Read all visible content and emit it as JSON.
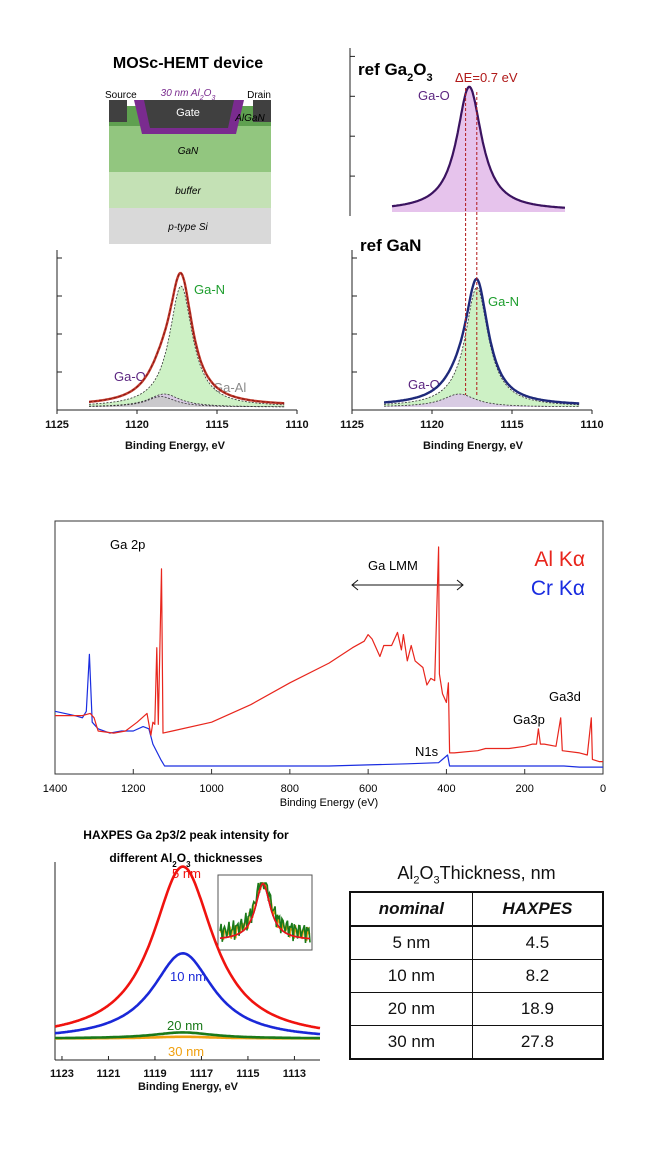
{
  "device": {
    "title": "MOSc-HEMT device",
    "source": "Source",
    "drain": "Drain",
    "oxide": "30 nm Al2O3",
    "gate": "Gate",
    "layers": [
      "AlGaN",
      "GaN",
      "buffer",
      "p-type Si"
    ],
    "colors": {
      "algan": "#5fa050",
      "gan": "#92c67f",
      "buffer": "#c4e1b5",
      "si": "#d9d9d9",
      "oxide": "#7a2b8f",
      "contact": "#404040"
    }
  },
  "chart_data": [
    {
      "id": "ref-ga2o3",
      "type": "line",
      "title": "ref Ga2O3",
      "fill_color": "#e6c3ec",
      "line_color": "#3b1360",
      "annotation": "ΔE=0.7 eV",
      "peak_labels": [
        "Ga-O"
      ],
      "series": [
        {
          "name": "Ga-O",
          "center": 1117.9,
          "fwhm": 1.8,
          "amplitude": 1.0
        }
      ],
      "xlim": [
        1125,
        1110
      ],
      "x_range": [
        1122.5,
        1112.2
      ]
    },
    {
      "id": "sample-fit",
      "type": "line",
      "title": "",
      "xlabel": "Binding Energy, eV",
      "xticks": [
        1125,
        1120,
        1115,
        1110
      ],
      "xlim": [
        1125,
        1110
      ],
      "x_range": [
        1123,
        1110.8
      ],
      "envelope_color": "#c0392b",
      "peak_labels": [
        "Ga-N",
        "Ga-O",
        "Ga-Al"
      ],
      "series": [
        {
          "name": "Ga-N",
          "center": 1117.25,
          "fwhm": 1.75,
          "amplitude": 0.93,
          "color": "#c8efbf"
        },
        {
          "name": "Ga-O",
          "center": 1118.3,
          "fwhm": 2.4,
          "amplitude": 0.1,
          "color": "#6d3d8f"
        },
        {
          "name": "Ga-Al",
          "center": 1118.5,
          "fwhm": 2.2,
          "amplitude": 0.08,
          "color": "#b8b8b8"
        }
      ]
    },
    {
      "id": "ref-gan",
      "type": "line",
      "title": "ref GaN",
      "xlabel": "Binding Energy, eV",
      "xticks": [
        1125,
        1120,
        1115,
        1110
      ],
      "xlim": [
        1125,
        1110
      ],
      "x_range": [
        1123,
        1110.8
      ],
      "envelope_color": "#1f2a7a",
      "peak_labels": [
        "Ga-N",
        "Ga-O"
      ],
      "series": [
        {
          "name": "Ga-N",
          "center": 1117.2,
          "fwhm": 1.75,
          "amplitude": 0.92,
          "color": "#c8efbf"
        },
        {
          "name": "Ga-O",
          "center": 1118.3,
          "fwhm": 2.5,
          "amplitude": 0.1,
          "color": "#6d3d8f"
        }
      ],
      "markers": [
        1117.9,
        1117.2
      ]
    },
    {
      "id": "survey",
      "type": "line",
      "xlabel": "Binding Energy (eV)",
      "xticks": [
        1400,
        1200,
        1000,
        800,
        600,
        400,
        200,
        0
      ],
      "xlim": [
        1400,
        0
      ],
      "legend": [
        {
          "name": "Al Kα",
          "color": "#e8261d"
        },
        {
          "name": "Cr Kα",
          "color": "#1a2de0"
        }
      ],
      "legend_position": "top-right",
      "annotations": [
        "Ga 2p",
        "Ga LMM",
        "N1s",
        "Ga3p",
        "Ga3d"
      ],
      "series": [
        {
          "name": "Al Kα",
          "color": "#e8261d",
          "points": [
            [
              1400,
              0.23
            ],
            [
              1330,
              0.23
            ],
            [
              1310,
              0.24
            ],
            [
              1300,
              0.22
            ],
            [
              1290,
              0.16
            ],
            [
              1250,
              0.15
            ],
            [
              1220,
              0.16
            ],
            [
              1190,
              0.2
            ],
            [
              1165,
              0.24
            ],
            [
              1155,
              0.14
            ],
            [
              1150,
              0.2
            ],
            [
              1145,
              0.19
            ],
            [
              1140,
              0.54
            ],
            [
              1136,
              0.19
            ],
            [
              1128,
              0.9
            ],
            [
              1124,
              0.15
            ],
            [
              1100,
              0.16
            ],
            [
              1000,
              0.2
            ],
            [
              900,
              0.28
            ],
            [
              800,
              0.38
            ],
            [
              700,
              0.47
            ],
            [
              640,
              0.54
            ],
            [
              610,
              0.57
            ],
            [
              600,
              0.6
            ],
            [
              590,
              0.58
            ],
            [
              570,
              0.5
            ],
            [
              560,
              0.55
            ],
            [
              540,
              0.55
            ],
            [
              525,
              0.61
            ],
            [
              515,
              0.53
            ],
            [
              510,
              0.6
            ],
            [
              500,
              0.48
            ],
            [
              490,
              0.55
            ],
            [
              480,
              0.48
            ],
            [
              460,
              0.45
            ],
            [
              450,
              0.37
            ],
            [
              440,
              0.4
            ],
            [
              430,
              0.39
            ],
            [
              420,
              1.0
            ],
            [
              418,
              0.42
            ],
            [
              410,
              0.33
            ],
            [
              400,
              0.29
            ],
            [
              395,
              0.38
            ],
            [
              392,
              0.06
            ],
            [
              380,
              0.06
            ],
            [
              320,
              0.07
            ],
            [
              300,
              0.08
            ],
            [
              260,
              0.08
            ],
            [
              240,
              0.08
            ],
            [
              200,
              0.09
            ],
            [
              180,
              0.1
            ],
            [
              170,
              0.1
            ],
            [
              165,
              0.17
            ],
            [
              160,
              0.1
            ],
            [
              150,
              0.1
            ],
            [
              120,
              0.09
            ],
            [
              108,
              0.22
            ],
            [
              104,
              0.07
            ],
            [
              60,
              0.06
            ],
            [
              40,
              0.05
            ],
            [
              30,
              0.22
            ],
            [
              27,
              0.03
            ],
            [
              10,
              0.02
            ],
            [
              0,
              0.02
            ]
          ]
        },
        {
          "name": "Cr Kα",
          "color": "#1a2de0",
          "points": [
            [
              1400,
              0.25
            ],
            [
              1350,
              0.23
            ],
            [
              1330,
              0.22
            ],
            [
              1320,
              0.25
            ],
            [
              1312,
              0.51
            ],
            [
              1305,
              0.2
            ],
            [
              1290,
              0.17
            ],
            [
              1260,
              0.15
            ],
            [
              1230,
              0.16
            ],
            [
              1200,
              0.16
            ],
            [
              1175,
              0.18
            ],
            [
              1160,
              0.17
            ],
            [
              1150,
              0.1
            ],
            [
              1130,
              0.03
            ],
            [
              1120,
              0.0
            ],
            [
              1000,
              0.0
            ],
            [
              900,
              0.0
            ],
            [
              800,
              0.0
            ],
            [
              700,
              0.0
            ],
            [
              600,
              0.005
            ],
            [
              500,
              0.01
            ],
            [
              420,
              0.015
            ],
            [
              397,
              0.05
            ],
            [
              392,
              0.0
            ],
            [
              200,
              0.0
            ],
            [
              120,
              0.0
            ],
            [
              100,
              0.0
            ],
            [
              60,
              -0.005
            ],
            [
              0,
              -0.005
            ]
          ]
        }
      ]
    },
    {
      "id": "haxpes",
      "type": "line",
      "title": "HAXPES Ga 2p3/2 peak intensity for different Al2O3 thicknesses",
      "xlabel": "Binding Energy, eV",
      "xticks": [
        1123,
        1121,
        1119,
        1117,
        1115,
        1113
      ],
      "xlim": [
        1123.3,
        1111.9
      ],
      "series": [
        {
          "name": "5 nm",
          "center": 1117.8,
          "fwhm": 3.2,
          "amplitude": 1.0,
          "color": "#f0130f"
        },
        {
          "name": "10 nm",
          "center": 1117.8,
          "fwhm": 3.2,
          "amplitude": 0.5,
          "color": "#1a28d8"
        },
        {
          "name": "20 nm",
          "center": 1117.8,
          "fwhm": 3.2,
          "amplitude": 0.035,
          "color": "#1a7a1a"
        },
        {
          "name": "30 nm",
          "center": 1117.8,
          "fwhm": 3.2,
          "amplitude": 0.01,
          "color": "#f0a010"
        }
      ]
    }
  ],
  "table": {
    "caption": "Al2O3Thickness, nm",
    "headers": [
      "nominal",
      "HAXPES"
    ],
    "rows": [
      [
        "5 nm",
        "4.5"
      ],
      [
        "10 nm",
        "8.2"
      ],
      [
        "20 nm",
        "18.9"
      ],
      [
        "30 nm",
        "27.8"
      ]
    ]
  }
}
